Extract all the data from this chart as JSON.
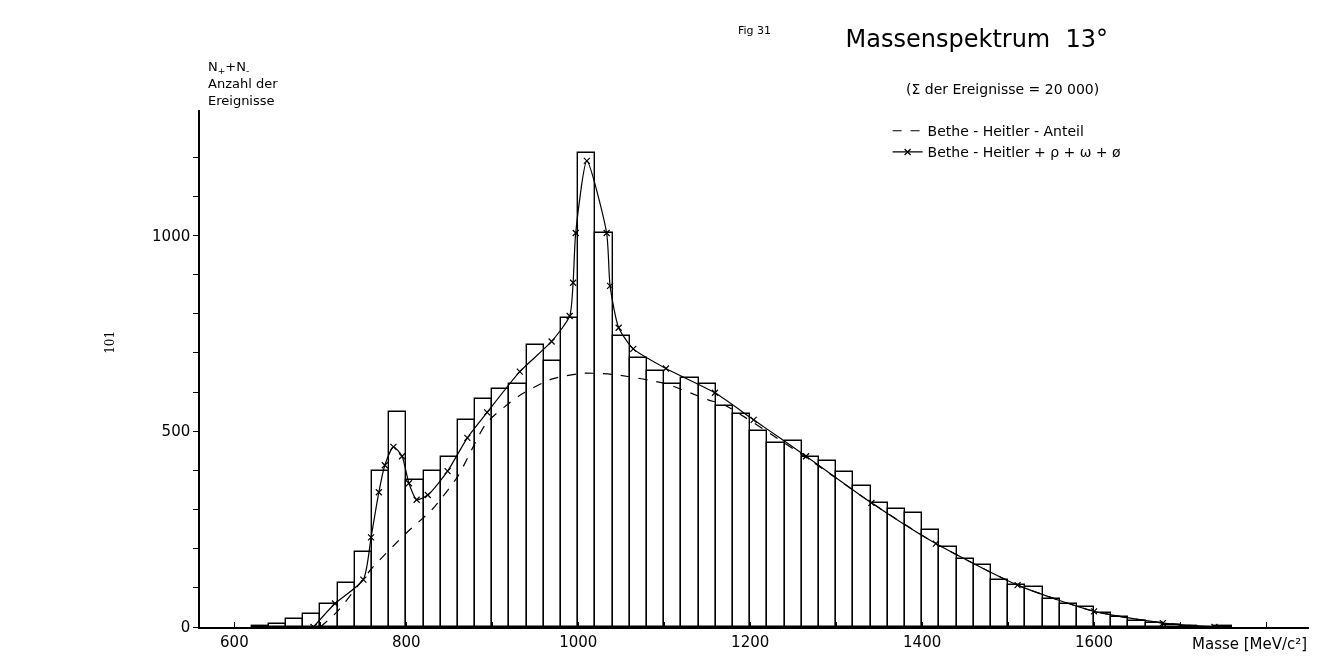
{
  "chart_data": {
    "type": "histogram",
    "title": "Massenspektrum  13°",
    "subtitle": "(Σ der Ereignisse = 20 000)",
    "xlabel": "Masse [MeV/c²]",
    "ylabel": "N$_{+}$+N$_{-}$\nAnzahl der\nEreignisse",
    "annotations": [
      "Fig 31",
      "101"
    ],
    "xlim": [
      560,
      1850
    ],
    "xticks": [
      600,
      {
        "value": 700,
        "label": null
      },
      800,
      {
        "value": 900,
        "label": null
      },
      1000,
      {
        "value": 1100,
        "label": null
      },
      1200,
      {
        "value": 1300,
        "label": null
      },
      1400,
      {
        "value": 1500,
        "label": null
      },
      1600,
      {
        "value": 1700,
        "label": null
      },
      {
        "value": 1800,
        "label": null
      }
    ],
    "ylim": [
      0,
      1320
    ],
    "yticks": [
      0,
      {
        "value": 100,
        "label": null
      },
      {
        "value": 200,
        "label": null
      },
      {
        "value": 300,
        "label": null
      },
      {
        "value": 400,
        "label": null
      },
      500,
      {
        "value": 600,
        "label": null
      },
      {
        "value": 700,
        "label": null
      },
      {
        "value": 800,
        "label": null
      },
      {
        "value": 900,
        "label": null
      },
      1000,
      {
        "value": 1100,
        "label": null
      },
      {
        "value": 1200,
        "label": null
      }
    ],
    "grid": false,
    "legend": "top right",
    "series": [
      {
        "color": "#000000",
        "bins": [
          620,
          640,
          660,
          680,
          700,
          720,
          740,
          760,
          780,
          800,
          820,
          840,
          860,
          880,
          900,
          920,
          940,
          960,
          980,
          1000,
          1020,
          1040,
          1060,
          1080,
          1100,
          1120,
          1140,
          1160,
          1180,
          1200,
          1220,
          1240,
          1260,
          1280,
          1300,
          1320,
          1340,
          1360,
          1380,
          1400,
          1420,
          1440,
          1460,
          1480,
          1500,
          1520,
          1540,
          1560,
          1580,
          1600,
          1620,
          1640,
          1660,
          1680,
          1700,
          1720,
          1740,
          1760
        ],
        "values": [
          3,
          8,
          20,
          34,
          58,
          113,
          192,
          398,
          550,
          376,
          398,
          433,
          529,
          581,
          607,
          621,
          719,
          679,
          790,
          1210,
          1006,
          744,
          687,
          654,
          620,
          635,
          620,
          564,
          543,
          500,
          469,
          475,
          433,
          423,
          397,
          361,
          317,
          302,
          290,
          248,
          204,
          173,
          159,
          121,
          107,
          102,
          71,
          59,
          50,
          36,
          25,
          15,
          10,
          5,
          3,
          1,
          2
        ]
      },
      {
        "type": "line",
        "name": "Bethe - Heitler - Anteil",
        "color": "#000000",
        "line_style": "dashed",
        "marker": "none",
        "x": [
          700,
          720,
          760,
          800,
          830,
          860,
          893,
          931,
          969,
          1007,
          1044,
          1102,
          1151,
          1170,
          1265,
          1341,
          1416,
          1511,
          1600,
          1680,
          1740
        ],
        "values": [
          0,
          40,
          150,
          240,
          300,
          385,
          520,
          590,
          633,
          648,
          644,
          621,
          580,
          567,
          433,
          317,
          213,
          107,
          40,
          10,
          0
        ]
      },
      {
        "type": "line",
        "name": "Bethe - Heitler + ρ + ω + ø",
        "color": "#000000",
        "line_style": "solid",
        "marker": "cross",
        "x": [
          692,
          717,
          750,
          759,
          768,
          775,
          785,
          795,
          803,
          812,
          825,
          848,
          871,
          894,
          932,
          969,
          990,
          994,
          997,
          1010,
          1033,
          1037,
          1047,
          1064,
          1102,
          1159,
          1204,
          1265,
          1341,
          1416,
          1511,
          1600,
          1680,
          1740
        ],
        "values": [
          0,
          60,
          121,
          229,
          344,
          413,
          460,
          436,
          367,
          325,
          337,
          398,
          483,
          548,
          652,
          729,
          794,
          879,
          1006,
          1190,
          1006,
          871,
          764,
          710,
          660,
          598,
          529,
          436,
          317,
          213,
          107,
          40,
          10,
          0
        ]
      }
    ]
  }
}
